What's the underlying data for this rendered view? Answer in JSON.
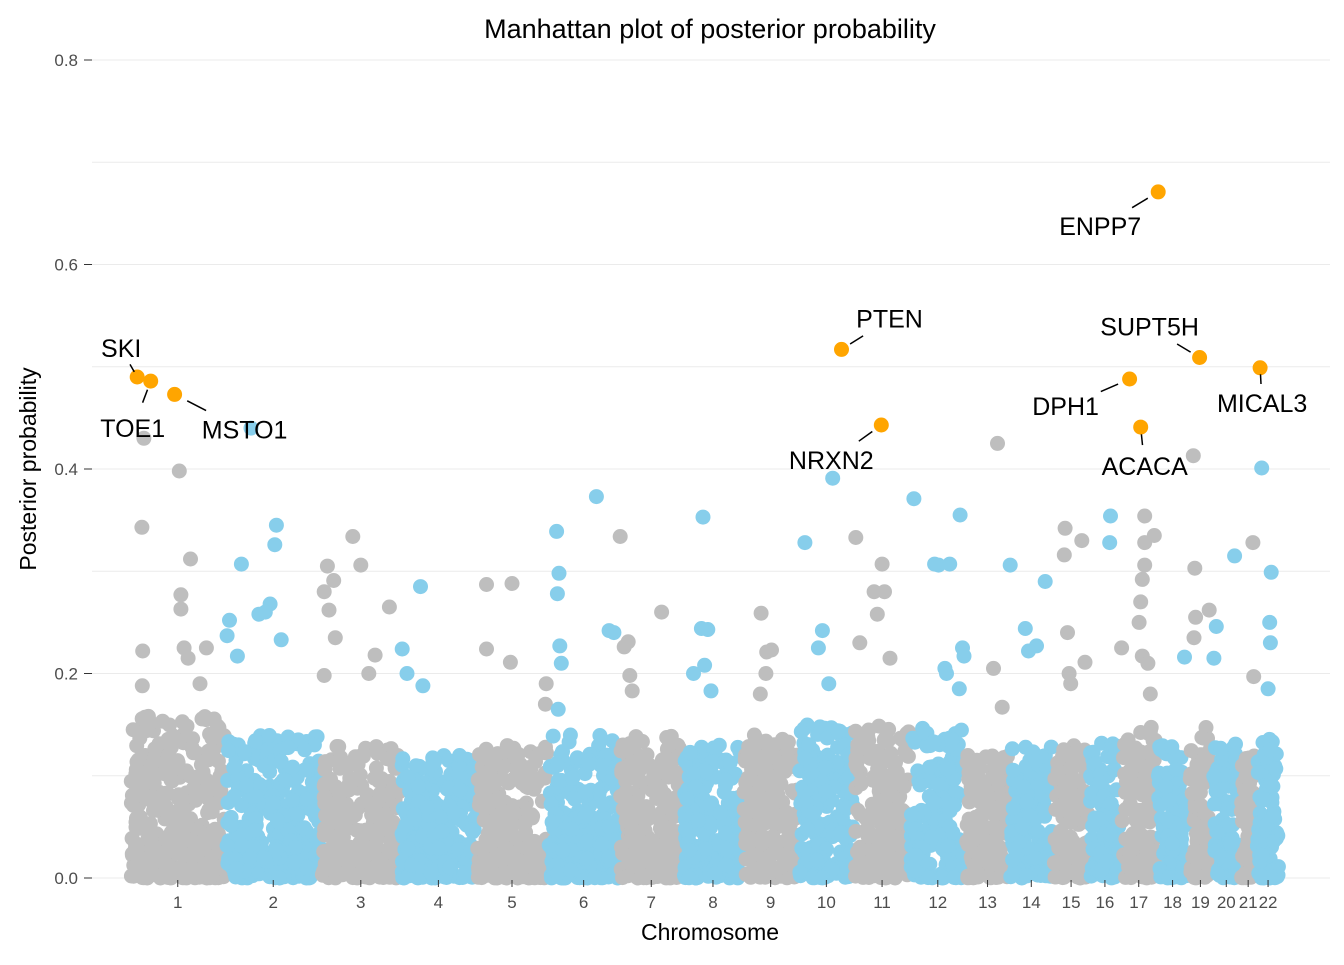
{
  "chart_data": {
    "type": "scatter",
    "title": "Manhattan plot of posterior probability",
    "xlabel": "Chromosome",
    "ylabel": "Posterior probability",
    "ylim": [
      0,
      0.8
    ],
    "yticks": [
      "0.0",
      "0.2",
      "0.4",
      "0.6",
      "0.8"
    ],
    "grid": true,
    "legend": "none",
    "colors": {
      "odd": "#bebebe",
      "even": "#87ceeb",
      "highlight": "#ffa500",
      "grid": "#ebebeb"
    },
    "chromosomes": [
      {
        "label": "1",
        "start": 0,
        "end": 1200,
        "max_bg": 0.16
      },
      {
        "label": "2",
        "start": 1200,
        "end": 2400,
        "max_bg": 0.14
      },
      {
        "label": "3",
        "start": 2400,
        "end": 3400,
        "max_bg": 0.13
      },
      {
        "label": "4",
        "start": 3400,
        "end": 4350,
        "max_bg": 0.12
      },
      {
        "label": "5",
        "start": 4350,
        "end": 5250,
        "max_bg": 0.13
      },
      {
        "label": "6",
        "start": 5250,
        "end": 6150,
        "max_bg": 0.14
      },
      {
        "label": "7",
        "start": 6150,
        "end": 6950,
        "max_bg": 0.14
      },
      {
        "label": "8",
        "start": 6950,
        "end": 7700,
        "max_bg": 0.13
      },
      {
        "label": "9",
        "start": 7700,
        "end": 8400,
        "max_bg": 0.14
      },
      {
        "label": "10",
        "start": 8400,
        "end": 9100,
        "max_bg": 0.15
      },
      {
        "label": "11",
        "start": 9100,
        "end": 9800,
        "max_bg": 0.15
      },
      {
        "label": "12",
        "start": 9800,
        "end": 10500,
        "max_bg": 0.15
      },
      {
        "label": "13",
        "start": 10500,
        "end": 11050,
        "max_bg": 0.12
      },
      {
        "label": "14",
        "start": 11050,
        "end": 11600,
        "max_bg": 0.13
      },
      {
        "label": "15",
        "start": 11600,
        "end": 12050,
        "max_bg": 0.13
      },
      {
        "label": "16",
        "start": 12050,
        "end": 12450,
        "max_bg": 0.14
      },
      {
        "label": "17",
        "start": 12450,
        "end": 12900,
        "max_bg": 0.15
      },
      {
        "label": "18",
        "start": 12900,
        "end": 13300,
        "max_bg": 0.13
      },
      {
        "label": "19",
        "start": 13300,
        "end": 13600,
        "max_bg": 0.15
      },
      {
        "label": "20",
        "start": 13600,
        "end": 13950,
        "max_bg": 0.14
      },
      {
        "label": "21",
        "start": 13950,
        "end": 14150,
        "max_bg": 0.12
      },
      {
        "label": "22",
        "start": 14150,
        "end": 14450,
        "max_bg": 0.14
      }
    ],
    "scattered_points": [
      {
        "x": 150,
        "y": 0.343
      },
      {
        "x": 160,
        "y": 0.222
      },
      {
        "x": 155,
        "y": 0.188
      },
      {
        "x": 175,
        "y": 0.43
      },
      {
        "x": 620,
        "y": 0.398
      },
      {
        "x": 640,
        "y": 0.277
      },
      {
        "x": 640,
        "y": 0.263
      },
      {
        "x": 760,
        "y": 0.312
      },
      {
        "x": 730,
        "y": 0.215
      },
      {
        "x": 680,
        "y": 0.225
      },
      {
        "x": 960,
        "y": 0.225
      },
      {
        "x": 880,
        "y": 0.19
      },
      {
        "x": 1520,
        "y": 0.44
      },
      {
        "x": 1840,
        "y": 0.345
      },
      {
        "x": 1820,
        "y": 0.326
      },
      {
        "x": 1400,
        "y": 0.307
      },
      {
        "x": 1620,
        "y": 0.258
      },
      {
        "x": 1760,
        "y": 0.268
      },
      {
        "x": 1700,
        "y": 0.26
      },
      {
        "x": 1900,
        "y": 0.233
      },
      {
        "x": 1350,
        "y": 0.217
      },
      {
        "x": 1250,
        "y": 0.252
      },
      {
        "x": 1220,
        "y": 0.237
      },
      {
        "x": 2800,
        "y": 0.334
      },
      {
        "x": 2480,
        "y": 0.305
      },
      {
        "x": 2560,
        "y": 0.291
      },
      {
        "x": 2900,
        "y": 0.306
      },
      {
        "x": 2440,
        "y": 0.28
      },
      {
        "x": 2500,
        "y": 0.262
      },
      {
        "x": 2580,
        "y": 0.235
      },
      {
        "x": 3260,
        "y": 0.265
      },
      {
        "x": 3080,
        "y": 0.218
      },
      {
        "x": 3000,
        "y": 0.2
      },
      {
        "x": 2440,
        "y": 0.198
      },
      {
        "x": 3650,
        "y": 0.285
      },
      {
        "x": 3480,
        "y": 0.2
      },
      {
        "x": 3680,
        "y": 0.188
      },
      {
        "x": 3420,
        "y": 0.224
      },
      {
        "x": 4480,
        "y": 0.287
      },
      {
        "x": 4800,
        "y": 0.288
      },
      {
        "x": 4480,
        "y": 0.224
      },
      {
        "x": 4780,
        "y": 0.211
      },
      {
        "x": 5230,
        "y": 0.19
      },
      {
        "x": 5220,
        "y": 0.17
      },
      {
        "x": 5860,
        "y": 0.373
      },
      {
        "x": 5360,
        "y": 0.339
      },
      {
        "x": 5390,
        "y": 0.298
      },
      {
        "x": 5370,
        "y": 0.278
      },
      {
        "x": 5400,
        "y": 0.227
      },
      {
        "x": 5420,
        "y": 0.21
      },
      {
        "x": 5380,
        "y": 0.165
      },
      {
        "x": 6020,
        "y": 0.242
      },
      {
        "x": 6080,
        "y": 0.24
      },
      {
        "x": 6160,
        "y": 0.334
      },
      {
        "x": 6210,
        "y": 0.226
      },
      {
        "x": 6260,
        "y": 0.231
      },
      {
        "x": 6680,
        "y": 0.26
      },
      {
        "x": 6280,
        "y": 0.198
      },
      {
        "x": 6310,
        "y": 0.183
      },
      {
        "x": 7200,
        "y": 0.353
      },
      {
        "x": 7260,
        "y": 0.243
      },
      {
        "x": 7180,
        "y": 0.244
      },
      {
        "x": 7300,
        "y": 0.183
      },
      {
        "x": 7220,
        "y": 0.208
      },
      {
        "x": 7080,
        "y": 0.2
      },
      {
        "x": 7930,
        "y": 0.259
      },
      {
        "x": 8000,
        "y": 0.221
      },
      {
        "x": 8060,
        "y": 0.223
      },
      {
        "x": 7920,
        "y": 0.18
      },
      {
        "x": 7990,
        "y": 0.2
      },
      {
        "x": 8830,
        "y": 0.391
      },
      {
        "x": 8480,
        "y": 0.328
      },
      {
        "x": 8700,
        "y": 0.242
      },
      {
        "x": 8650,
        "y": 0.225
      },
      {
        "x": 8780,
        "y": 0.19
      },
      {
        "x": 9120,
        "y": 0.333
      },
      {
        "x": 9450,
        "y": 0.307
      },
      {
        "x": 9480,
        "y": 0.28
      },
      {
        "x": 9350,
        "y": 0.28
      },
      {
        "x": 9390,
        "y": 0.258
      },
      {
        "x": 9550,
        "y": 0.215
      },
      {
        "x": 9170,
        "y": 0.23
      },
      {
        "x": 9850,
        "y": 0.371
      },
      {
        "x": 10430,
        "y": 0.355
      },
      {
        "x": 10160,
        "y": 0.306
      },
      {
        "x": 10110,
        "y": 0.307
      },
      {
        "x": 10300,
        "y": 0.307
      },
      {
        "x": 10240,
        "y": 0.205
      },
      {
        "x": 10260,
        "y": 0.2
      },
      {
        "x": 10460,
        "y": 0.225
      },
      {
        "x": 10480,
        "y": 0.217
      },
      {
        "x": 10420,
        "y": 0.185
      },
      {
        "x": 10900,
        "y": 0.425
      },
      {
        "x": 10850,
        "y": 0.205
      },
      {
        "x": 10960,
        "y": 0.167
      },
      {
        "x": 11060,
        "y": 0.306
      },
      {
        "x": 11500,
        "y": 0.29
      },
      {
        "x": 11250,
        "y": 0.244
      },
      {
        "x": 11390,
        "y": 0.227
      },
      {
        "x": 11290,
        "y": 0.222
      },
      {
        "x": 11750,
        "y": 0.342
      },
      {
        "x": 11960,
        "y": 0.33
      },
      {
        "x": 11740,
        "y": 0.316
      },
      {
        "x": 11780,
        "y": 0.24
      },
      {
        "x": 12000,
        "y": 0.211
      },
      {
        "x": 11800,
        "y": 0.2
      },
      {
        "x": 11820,
        "y": 0.19
      },
      {
        "x": 12320,
        "y": 0.354
      },
      {
        "x": 12310,
        "y": 0.328
      },
      {
        "x": 12460,
        "y": 0.225
      },
      {
        "x": 12750,
        "y": 0.354
      },
      {
        "x": 12870,
        "y": 0.335
      },
      {
        "x": 12750,
        "y": 0.328
      },
      {
        "x": 12720,
        "y": 0.292
      },
      {
        "x": 12680,
        "y": 0.25
      },
      {
        "x": 12700,
        "y": 0.27
      },
      {
        "x": 12750,
        "y": 0.306
      },
      {
        "x": 12720,
        "y": 0.217
      },
      {
        "x": 12790,
        "y": 0.21
      },
      {
        "x": 12820,
        "y": 0.18
      },
      {
        "x": 13360,
        "y": 0.413
      },
      {
        "x": 13380,
        "y": 0.303
      },
      {
        "x": 13390,
        "y": 0.255
      },
      {
        "x": 13370,
        "y": 0.235
      },
      {
        "x": 13560,
        "y": 0.262
      },
      {
        "x": 13620,
        "y": 0.215
      },
      {
        "x": 13250,
        "y": 0.216
      },
      {
        "x": 13650,
        "y": 0.246
      },
      {
        "x": 13880,
        "y": 0.315
      },
      {
        "x": 14110,
        "y": 0.328
      },
      {
        "x": 14120,
        "y": 0.197
      },
      {
        "x": 14220,
        "y": 0.401
      },
      {
        "x": 14340,
        "y": 0.299
      },
      {
        "x": 14320,
        "y": 0.25
      },
      {
        "x": 14330,
        "y": 0.23
      },
      {
        "x": 14300,
        "y": 0.185
      }
    ],
    "highlighted_genes": [
      {
        "name": "SKI",
        "x": 90,
        "y": 0.49
      },
      {
        "name": "TOE1",
        "x": 260,
        "y": 0.486
      },
      {
        "name": "MSTO1",
        "x": 560,
        "y": 0.473
      },
      {
        "name": "PTEN",
        "x": 8940,
        "y": 0.517
      },
      {
        "name": "NRXN2",
        "x": 9440,
        "y": 0.443
      },
      {
        "name": "ENPP7",
        "x": 12920,
        "y": 0.671
      },
      {
        "name": "SUPT5H",
        "x": 13440,
        "y": 0.509
      },
      {
        "name": "DPH1",
        "x": 12560,
        "y": 0.488
      },
      {
        "name": "ACACA",
        "x": 12700,
        "y": 0.441
      },
      {
        "name": "MICAL3",
        "x": 14200,
        "y": 0.499
      }
    ]
  }
}
